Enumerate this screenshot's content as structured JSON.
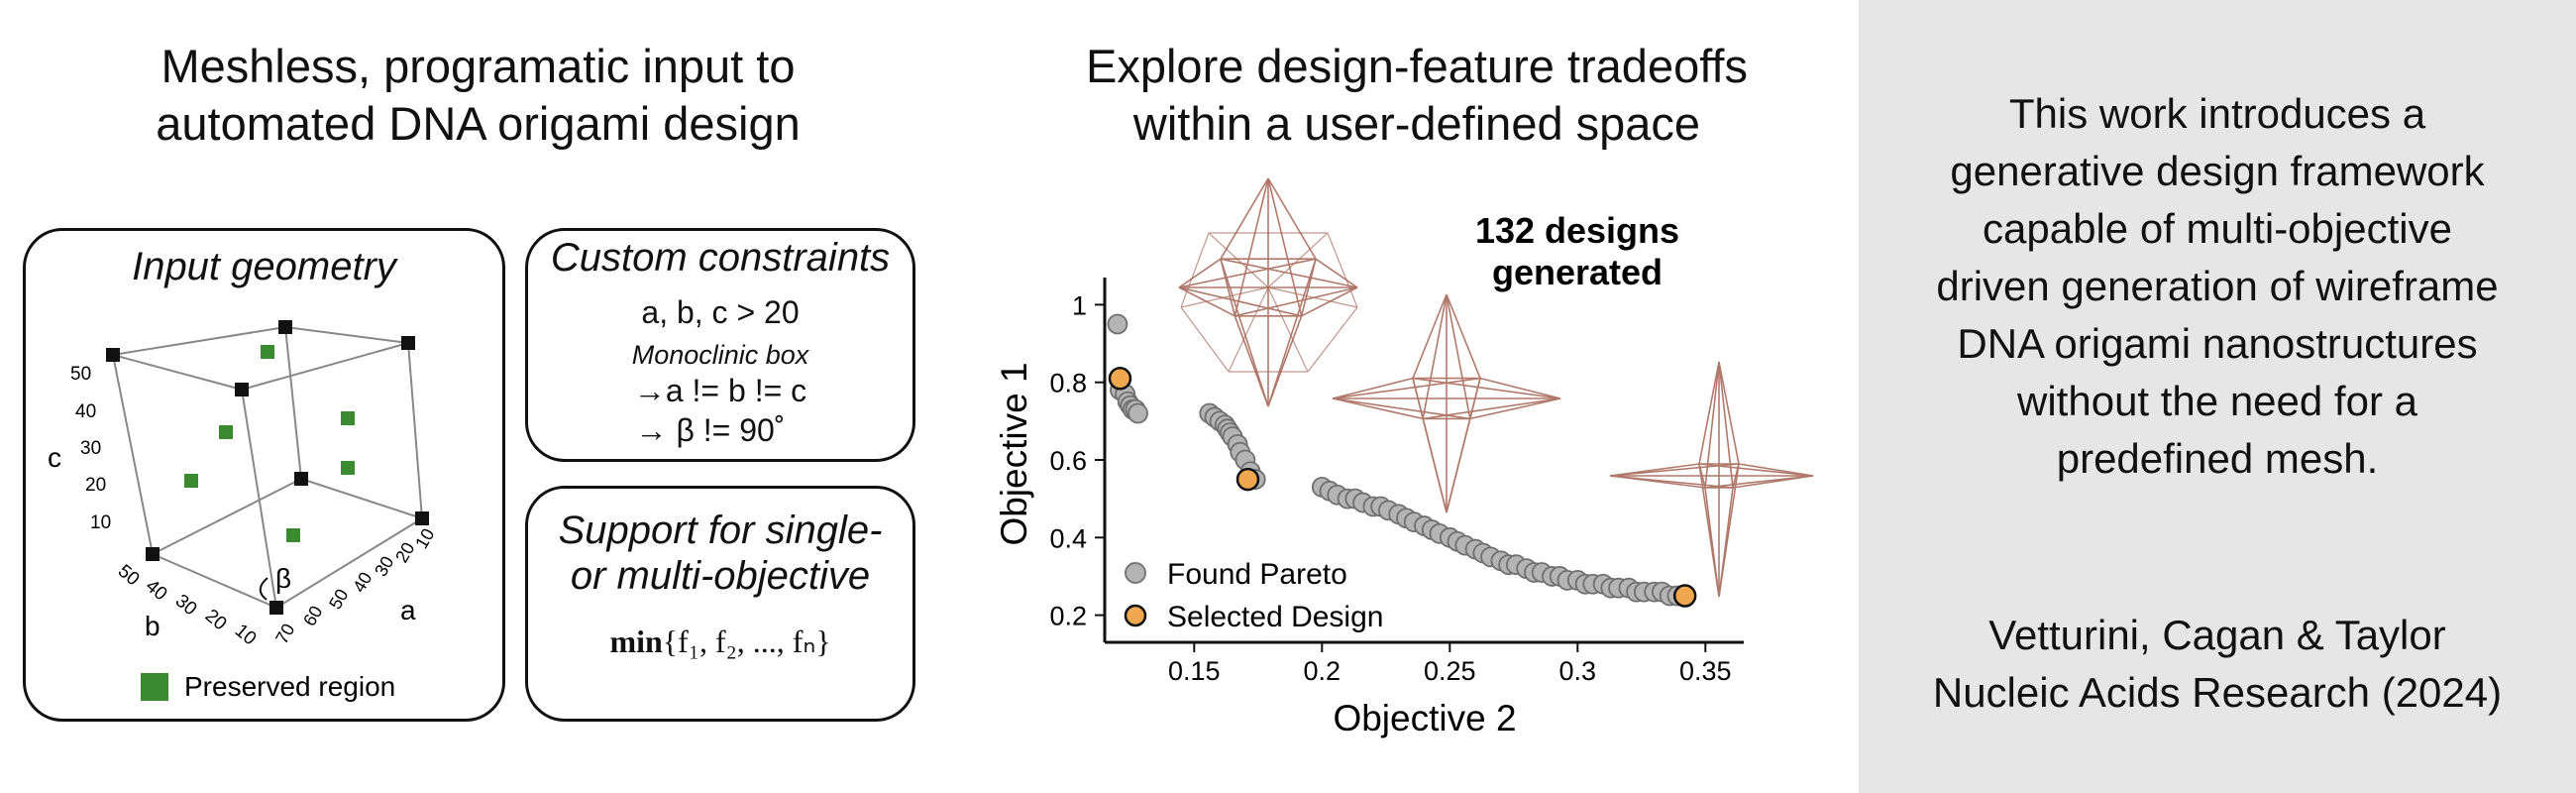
{
  "left": {
    "title_line1": "Meshless, programatic input to",
    "title_line2": "automated DNA origami design",
    "input_geometry": {
      "title": "Input geometry",
      "c_label": "c",
      "b_label": "b",
      "a_label": "a",
      "beta_label": "β",
      "c_ticks": [
        "50",
        "40",
        "30",
        "20",
        "10"
      ],
      "b_ticks": [
        "50",
        "40",
        "30",
        "20",
        "10"
      ],
      "a_ticks": [
        "70",
        "60",
        "50",
        "40",
        "30",
        "20",
        "10"
      ],
      "legend_label": "Preserved region",
      "legend_color": "#3a8a2f"
    },
    "constraints": {
      "title": "Custom constraints",
      "line1": "a, b, c > 20",
      "line2": "Monoclinic box",
      "line3": "→a != b != c",
      "line4": "→   β  !=  90˚"
    },
    "objective": {
      "title_line1": "Support for single-",
      "title_line2": "or multi-objective",
      "formula_min": "min",
      "formula_rest": "{f₁, f₂, ..., fₙ}"
    }
  },
  "middle": {
    "title_line1": "Explore design-feature tradeoffs",
    "title_line2": "within a user-defined space",
    "count_line1": "132 designs",
    "count_line2": "generated"
  },
  "chart_data": {
    "type": "scatter",
    "xlabel": "Objective 2",
    "ylabel": "Objective 1",
    "xlim": [
      0.115,
      0.365
    ],
    "ylim": [
      0.13,
      1.07
    ],
    "xticks": [
      "0.15",
      "0.2",
      "0.25",
      "0.3",
      "0.35"
    ],
    "yticks": [
      "0.2",
      "0.4",
      "0.6",
      "0.8",
      "1"
    ],
    "series": [
      {
        "name": "Found Pareto",
        "color": "#9a9a9a",
        "x": [
          0.12,
          0.121,
          0.123,
          0.124,
          0.125,
          0.126,
          0.127,
          0.128,
          0.156,
          0.158,
          0.16,
          0.162,
          0.163,
          0.164,
          0.165,
          0.167,
          0.168,
          0.17,
          0.172,
          0.174,
          0.2,
          0.203,
          0.206,
          0.21,
          0.213,
          0.216,
          0.22,
          0.223,
          0.226,
          0.23,
          0.233,
          0.236,
          0.24,
          0.243,
          0.246,
          0.25,
          0.253,
          0.256,
          0.26,
          0.263,
          0.266,
          0.27,
          0.273,
          0.276,
          0.28,
          0.283,
          0.286,
          0.29,
          0.293,
          0.296,
          0.3,
          0.303,
          0.306,
          0.31,
          0.313,
          0.316,
          0.32,
          0.323,
          0.326,
          0.33,
          0.333,
          0.336,
          0.339
        ],
        "y": [
          0.95,
          0.78,
          0.77,
          0.75,
          0.74,
          0.73,
          0.73,
          0.72,
          0.72,
          0.71,
          0.7,
          0.69,
          0.68,
          0.67,
          0.66,
          0.64,
          0.62,
          0.6,
          0.57,
          0.55,
          0.53,
          0.52,
          0.51,
          0.5,
          0.5,
          0.49,
          0.48,
          0.48,
          0.47,
          0.46,
          0.45,
          0.44,
          0.43,
          0.42,
          0.41,
          0.4,
          0.39,
          0.38,
          0.37,
          0.36,
          0.35,
          0.34,
          0.33,
          0.33,
          0.32,
          0.31,
          0.31,
          0.3,
          0.3,
          0.29,
          0.29,
          0.28,
          0.28,
          0.28,
          0.27,
          0.27,
          0.27,
          0.26,
          0.26,
          0.26,
          0.26,
          0.25,
          0.25
        ]
      },
      {
        "name": "Selected Design",
        "color": "#f0a850",
        "x": [
          0.121,
          0.171,
          0.342
        ],
        "y": [
          0.81,
          0.55,
          0.25
        ]
      }
    ]
  },
  "right": {
    "text_lines": [
      "This work introduces a",
      "generative design framework",
      "capable of multi-objective",
      "driven generation of wireframe",
      "DNA origami nanostructures",
      "without the need for a",
      "predefined mesh."
    ],
    "citation_line1": "Vetturini, Cagan & Taylor",
    "citation_line2": "Nucleic Acids Research (2024)"
  },
  "colors": {
    "structure": "#a86b5c",
    "box_line": "#888888",
    "background_right": "#e6e6e6"
  }
}
